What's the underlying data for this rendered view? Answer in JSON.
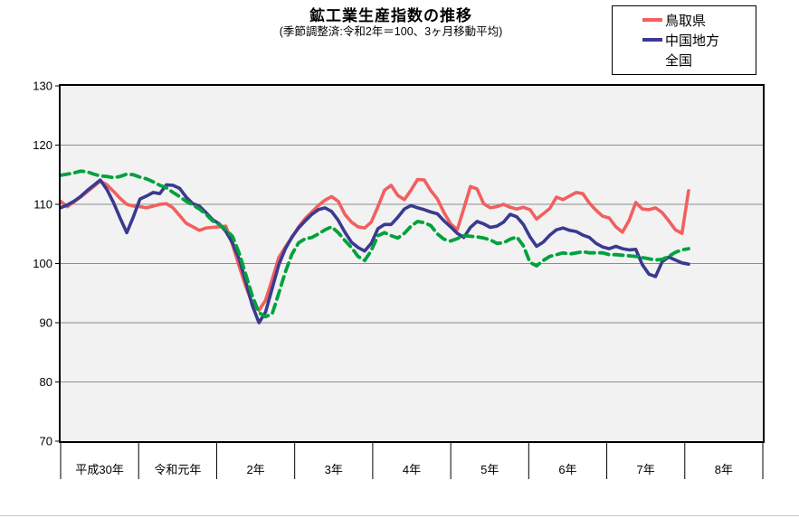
{
  "chart_data": {
    "type": "line",
    "title": "鉱工業生産指数の推移",
    "subtitle": "(季節調整済:令和2年＝100、3ヶ月移動平均)",
    "ylim": [
      70,
      130
    ],
    "yticks": [
      70,
      80,
      90,
      100,
      110,
      120,
      130
    ],
    "x_categories": [
      "平成30年",
      "令和元年",
      "2年",
      "3年",
      "4年",
      "5年",
      "6年",
      "7年",
      "8年"
    ],
    "points_per_category": 12,
    "x_start": "平成30年1月",
    "x_end": "令和7年12月",
    "grid": true,
    "legend_position": "top-right",
    "plot_bg": "#f2f2f2",
    "grid_color": "#8c8c8c",
    "axis_color": "#000000",
    "series": [
      {
        "name": "鳥取県",
        "color": "#f25f5f",
        "style": "solid",
        "values": [
          110.5,
          109.6,
          110.4,
          111.2,
          112.1,
          113.0,
          113.9,
          113.3,
          112.2,
          111.0,
          110.0,
          109.7,
          109.6,
          109.4,
          109.7,
          110.0,
          110.1,
          109.4,
          108.1,
          106.8,
          106.2,
          105.6,
          106.0,
          106.1,
          106.2,
          106.3,
          103.2,
          99.6,
          96.2,
          93.2,
          92.1,
          93.8,
          97.3,
          101.0,
          102.8,
          104.4,
          106.2,
          107.6,
          108.7,
          109.8,
          110.7,
          111.3,
          110.5,
          108.3,
          107.0,
          106.2,
          106.0,
          107.0,
          109.6,
          112.4,
          113.2,
          111.5,
          110.8,
          112.4,
          114.2,
          114.1,
          112.3,
          110.9,
          108.6,
          106.7,
          105.7,
          109.3,
          113.0,
          112.6,
          110.1,
          109.4,
          109.6,
          110.0,
          109.5,
          109.2,
          109.5,
          109.1,
          107.5,
          108.4,
          109.3,
          111.2,
          110.8,
          111.4,
          112.0,
          111.8,
          110.2,
          109.0,
          108.0,
          107.7,
          106.2,
          105.3,
          107.3,
          110.3,
          109.2,
          109.1,
          109.4,
          108.6,
          107.2,
          105.7,
          105.1,
          112.3
        ]
      },
      {
        "name": "中国地方",
        "color": "#3a3a90",
        "style": "solid",
        "values": [
          109.4,
          109.9,
          110.5,
          111.3,
          112.3,
          113.2,
          114.1,
          112.5,
          110.3,
          107.7,
          105.2,
          107.9,
          110.9,
          111.4,
          112.0,
          111.8,
          113.3,
          113.2,
          112.7,
          111.2,
          110.1,
          109.7,
          108.6,
          107.4,
          106.7,
          105.4,
          103.5,
          100.8,
          97.0,
          92.9,
          90.0,
          91.8,
          95.8,
          99.8,
          102.5,
          104.5,
          106.0,
          107.2,
          108.3,
          109.1,
          109.4,
          108.8,
          107.3,
          105.3,
          103.6,
          102.7,
          102.1,
          103.4,
          105.9,
          106.6,
          106.6,
          107.8,
          109.2,
          109.8,
          109.4,
          109.1,
          108.7,
          108.4,
          107.2,
          106.2,
          105.1,
          104.4,
          106.1,
          107.1,
          106.7,
          106.1,
          106.3,
          107.0,
          108.3,
          107.9,
          106.6,
          104.5,
          102.9,
          103.6,
          104.8,
          105.7,
          106.0,
          105.6,
          105.4,
          104.8,
          104.4,
          103.4,
          102.8,
          102.5,
          102.9,
          102.5,
          102.3,
          102.4,
          99.8,
          98.2,
          97.8,
          100.3,
          101.1,
          100.6,
          100.1,
          99.9
        ]
      },
      {
        "name": "全国",
        "color": "#00a23c",
        "style": "dashed",
        "values": [
          114.9,
          115.1,
          115.3,
          115.6,
          115.5,
          115.1,
          114.8,
          114.7,
          114.5,
          114.7,
          115.1,
          115.0,
          114.6,
          114.3,
          113.8,
          113.2,
          112.8,
          112.0,
          111.3,
          110.5,
          109.9,
          109.2,
          108.3,
          107.2,
          106.6,
          105.7,
          104.6,
          101.8,
          98.2,
          94.5,
          91.7,
          91.0,
          91.5,
          95.0,
          98.6,
          101.6,
          103.5,
          104.2,
          104.4,
          105.0,
          105.7,
          106.2,
          105.2,
          103.9,
          102.7,
          101.2,
          100.5,
          102.2,
          104.7,
          105.2,
          104.7,
          104.3,
          105.1,
          106.3,
          107.1,
          106.9,
          106.4,
          105.0,
          104.1,
          103.8,
          104.2,
          104.7,
          104.6,
          104.5,
          104.3,
          104.0,
          103.4,
          103.5,
          104.1,
          104.5,
          103.0,
          100.2,
          99.6,
          100.5,
          101.2,
          101.5,
          101.8,
          101.6,
          101.8,
          102.0,
          101.8,
          101.8,
          101.8,
          101.5,
          101.5,
          101.4,
          101.3,
          101.2,
          101.0,
          100.8,
          100.6,
          100.7,
          101.2,
          101.9,
          102.3,
          102.5
        ]
      }
    ]
  }
}
